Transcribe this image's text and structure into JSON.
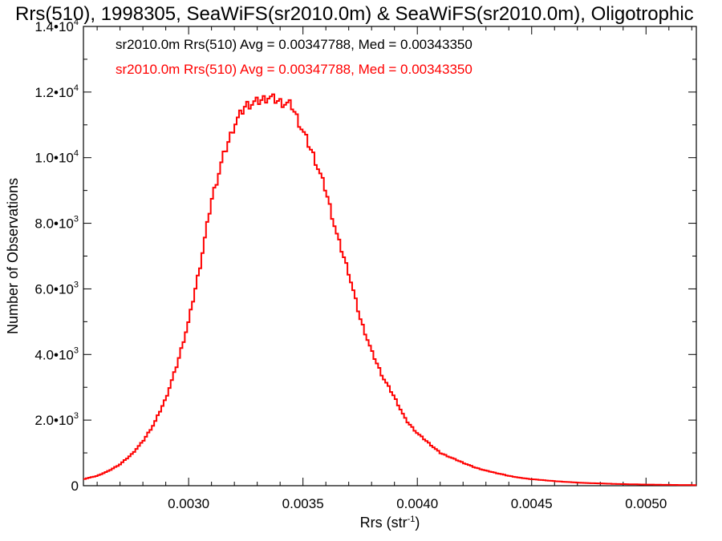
{
  "chart_data": {
    "type": "line",
    "title": "Rrs(510), 1998305, SeaWiFS(sr2010.0m) & SeaWiFS(sr2010.0m), Oligotrophic",
    "xlabel": "Rrs (str",
    "xlabel_sup": "-1",
    "xlabel_suffix": ")",
    "ylabel": "Number of Observations",
    "xlim": [
      0.00254,
      0.00522
    ],
    "ylim": [
      0,
      14000
    ],
    "x_ticks": [
      {
        "value": 0.003,
        "label": "0.0030"
      },
      {
        "value": 0.0035,
        "label": "0.0035"
      },
      {
        "value": 0.004,
        "label": "0.0040"
      },
      {
        "value": 0.0045,
        "label": "0.0045"
      },
      {
        "value": 0.005,
        "label": "0.0050"
      }
    ],
    "y_ticks": [
      {
        "value": 0,
        "mantissa": "0",
        "exp": ""
      },
      {
        "value": 2000,
        "mantissa": "2.0•3",
        "exp": ""
      },
      {
        "value": 4000,
        "mantissa": "4.0•3",
        "exp": ""
      },
      {
        "value": 6000,
        "mantissa": "6.0•3",
        "exp": ""
      },
      {
        "value": 8000,
        "mantissa": "8.0•3",
        "exp": ""
      },
      {
        "value": 10000,
        "mantissa": "1.0•4",
        "exp": ""
      },
      {
        "value": 12000,
        "mantissa": "1.2•4",
        "exp": ""
      },
      {
        "value": 14000,
        "mantissa": "1.4•4",
        "exp": ""
      }
    ],
    "y_tick_text": [
      {
        "value": 0,
        "base": "0",
        "exp": ""
      },
      {
        "value": 2000,
        "base": "2.0•10",
        "exp": "3"
      },
      {
        "value": 4000,
        "base": "4.0•10",
        "exp": "3"
      },
      {
        "value": 6000,
        "base": "6.0•10",
        "exp": "3"
      },
      {
        "value": 8000,
        "base": "8.0•10",
        "exp": "3"
      },
      {
        "value": 10000,
        "base": "1.0•10",
        "exp": "4"
      },
      {
        "value": 12000,
        "base": "1.2•10",
        "exp": "4"
      },
      {
        "value": 14000,
        "base": "1.4•10",
        "exp": "4"
      }
    ],
    "legend": [
      {
        "text": "sr2010.0m Rrs(510) Avg = 0.00347788, Med = 0.00343350",
        "color": "#000000"
      },
      {
        "text": "sr2010.0m Rrs(510) Avg = 0.00347788, Med = 0.00343350",
        "color": "#ff0000"
      }
    ],
    "legend_placement": "top-left",
    "series": [
      {
        "color": "#ff0000",
        "points": [
          [
            0.00254,
            200
          ],
          [
            0.0026,
            300
          ],
          [
            0.00265,
            450
          ],
          [
            0.0027,
            650
          ],
          [
            0.00275,
            950
          ],
          [
            0.0028,
            1350
          ],
          [
            0.00285,
            1900
          ],
          [
            0.0029,
            2650
          ],
          [
            0.00295,
            3700
          ],
          [
            0.003,
            5000
          ],
          [
            0.00305,
            6700
          ],
          [
            0.0031,
            8700
          ],
          [
            0.00315,
            10000
          ],
          [
            0.0032,
            11000
          ],
          [
            0.00325,
            11600
          ],
          [
            0.0033,
            11700
          ],
          [
            0.00335,
            11850
          ],
          [
            0.0034,
            11700
          ],
          [
            0.00345,
            11600
          ],
          [
            0.0035,
            10800
          ],
          [
            0.00355,
            10000
          ],
          [
            0.0036,
            9000
          ],
          [
            0.00365,
            7600
          ],
          [
            0.0037,
            6500
          ],
          [
            0.00375,
            5100
          ],
          [
            0.0038,
            4100
          ],
          [
            0.00385,
            3300
          ],
          [
            0.0039,
            2700
          ],
          [
            0.00395,
            2000
          ],
          [
            0.004,
            1600
          ],
          [
            0.00405,
            1300
          ],
          [
            0.0041,
            1000
          ],
          [
            0.00415,
            850
          ],
          [
            0.0042,
            700
          ],
          [
            0.00425,
            560
          ],
          [
            0.0043,
            460
          ],
          [
            0.00435,
            380
          ],
          [
            0.0044,
            300
          ],
          [
            0.00445,
            240
          ],
          [
            0.0045,
            200
          ],
          [
            0.00455,
            170
          ],
          [
            0.0046,
            140
          ],
          [
            0.00465,
            115
          ],
          [
            0.0047,
            95
          ],
          [
            0.00475,
            80
          ],
          [
            0.0048,
            70
          ],
          [
            0.00485,
            58
          ],
          [
            0.0049,
            48
          ],
          [
            0.00495,
            42
          ],
          [
            0.005,
            35
          ],
          [
            0.00505,
            30
          ],
          [
            0.0051,
            26
          ],
          [
            0.00515,
            22
          ],
          [
            0.0052,
            20
          ],
          [
            0.00522,
            18
          ]
        ]
      }
    ]
  }
}
